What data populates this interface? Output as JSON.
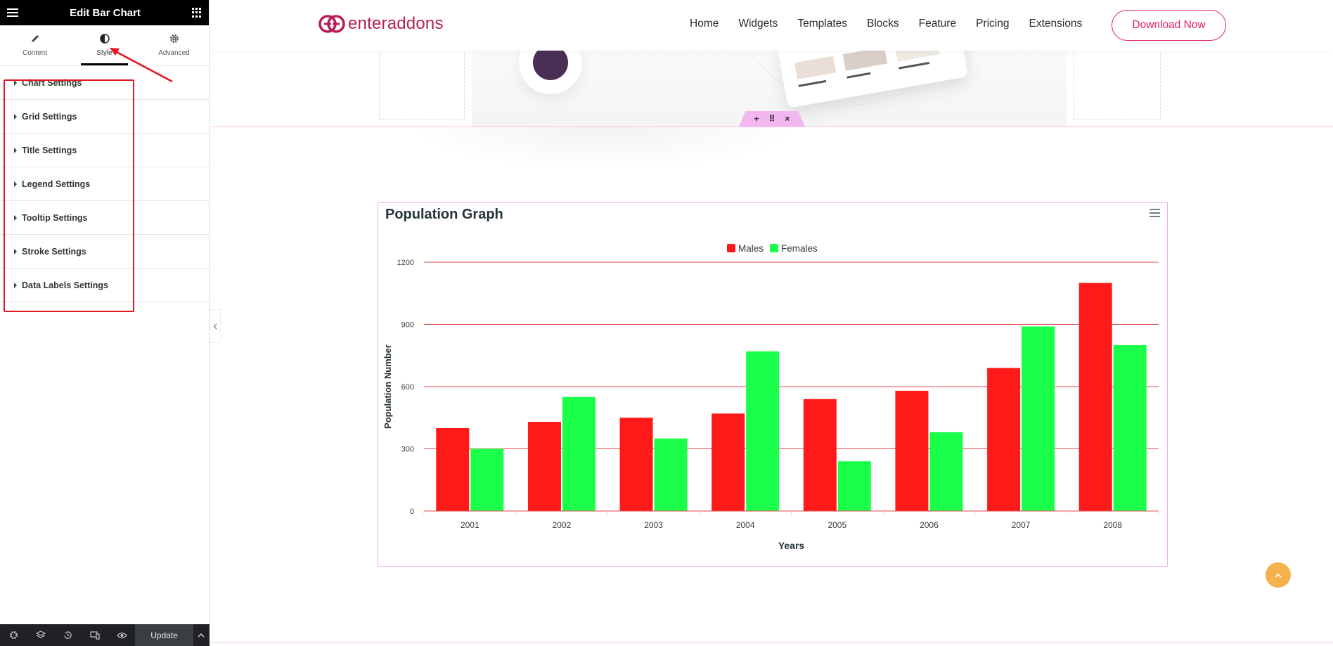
{
  "panel": {
    "title": "Edit Bar Chart",
    "tabs": [
      {
        "label": "Content",
        "icon": "pencil-icon"
      },
      {
        "label": "Style",
        "icon": "contrast-icon",
        "active": true
      },
      {
        "label": "Advanced",
        "icon": "gear-icon"
      }
    ],
    "sections": [
      "Chart Settings",
      "Grid Settings",
      "Title Settings",
      "Legend Settings",
      "Tooltip Settings",
      "Stroke Settings",
      "Data Labels Settings"
    ],
    "footer": {
      "update_label": "Update"
    }
  },
  "site": {
    "logo_text": "enteraddons",
    "nav": [
      "Home",
      "Widgets",
      "Templates",
      "Blocks",
      "Feature",
      "Pricing",
      "Extensions"
    ],
    "cta": "Download Now"
  },
  "colors": {
    "males": "#ff1a1a",
    "females": "#1aff4a",
    "grid": "#e34b4b",
    "brand": "#b51f58",
    "accent": "#e4205f",
    "highlight": "#e8141e"
  },
  "chart_data": {
    "type": "bar",
    "title": "Population Graph",
    "xlabel": "Years",
    "ylabel": "Population Number",
    "categories": [
      "2001",
      "2002",
      "2003",
      "2004",
      "2005",
      "2006",
      "2007",
      "2008"
    ],
    "series": [
      {
        "name": "Males",
        "values": [
          400,
          430,
          450,
          470,
          540,
          580,
          690,
          1100
        ]
      },
      {
        "name": "Females",
        "values": [
          300,
          550,
          350,
          770,
          240,
          380,
          890,
          800
        ]
      }
    ],
    "ylim": [
      0,
      1200
    ],
    "yticks": [
      0,
      300,
      600,
      900,
      1200
    ],
    "grid": true,
    "legend": "top-center"
  }
}
